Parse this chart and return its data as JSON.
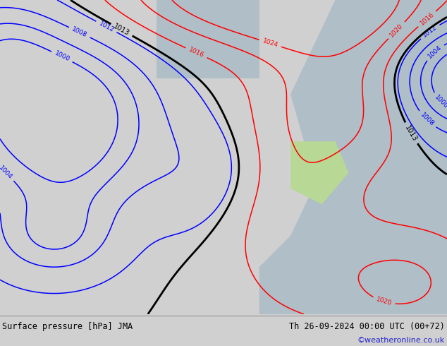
{
  "title_left": "Surface pressure [hPa] JMA",
  "title_right": "Th 26-09-2024 00:00 UTC (00+72)",
  "credit": "©weatheronline.co.uk",
  "land_color": "#b8d896",
  "sea_color": "#b0bec8",
  "footer_color": "#d0d0d0",
  "figsize": [
    6.34,
    4.9
  ],
  "dpi": 100
}
